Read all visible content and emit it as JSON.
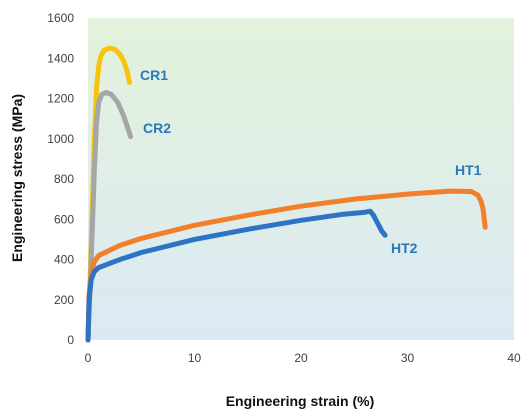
{
  "chart_data": {
    "type": "line",
    "title": "",
    "xlabel": "Engineering strain (%)",
    "ylabel": "Engineering stress (MPa)",
    "xlim": [
      0,
      40
    ],
    "ylim": [
      0,
      1600
    ],
    "xticks": [
      "0",
      "10",
      "20",
      "30",
      "40"
    ],
    "yticks": [
      "0",
      "200",
      "400",
      "600",
      "800",
      "1000",
      "1200",
      "1400",
      "1600"
    ],
    "grid": false,
    "background": "vertical gradient light green (top) to light blue (bottom)",
    "series": [
      {
        "name": "CR1",
        "color": "#f6c40e",
        "points": [
          [
            0,
            0
          ],
          [
            0.2,
            300
          ],
          [
            0.4,
            650
          ],
          [
            0.6,
            1000
          ],
          [
            0.8,
            1250
          ],
          [
            1.0,
            1360
          ],
          [
            1.2,
            1410
          ],
          [
            1.5,
            1440
          ],
          [
            2.0,
            1450
          ],
          [
            2.5,
            1445
          ],
          [
            3.0,
            1420
          ],
          [
            3.4,
            1380
          ],
          [
            3.7,
            1330
          ],
          [
            3.9,
            1280
          ]
        ]
      },
      {
        "name": "CR2",
        "color": "#a6a6a6",
        "points": [
          [
            0,
            0
          ],
          [
            0.2,
            250
          ],
          [
            0.4,
            550
          ],
          [
            0.6,
            850
          ],
          [
            0.8,
            1080
          ],
          [
            1.0,
            1180
          ],
          [
            1.3,
            1220
          ],
          [
            1.7,
            1230
          ],
          [
            2.2,
            1220
          ],
          [
            2.8,
            1180
          ],
          [
            3.3,
            1120
          ],
          [
            3.7,
            1060
          ],
          [
            4.0,
            1010
          ]
        ]
      },
      {
        "name": "HT1",
        "color": "#f27f2a",
        "points": [
          [
            0,
            0
          ],
          [
            0.1,
            230
          ],
          [
            0.3,
            330
          ],
          [
            0.6,
            390
          ],
          [
            1,
            420
          ],
          [
            3,
            470
          ],
          [
            5,
            505
          ],
          [
            10,
            570
          ],
          [
            15,
            620
          ],
          [
            20,
            665
          ],
          [
            25,
            700
          ],
          [
            30,
            725
          ],
          [
            34,
            740
          ],
          [
            36,
            738
          ],
          [
            36.6,
            720
          ],
          [
            36.9,
            690
          ],
          [
            37.1,
            650
          ],
          [
            37.3,
            560
          ]
        ]
      },
      {
        "name": "HT2",
        "color": "#2e74c4",
        "points": [
          [
            0,
            0
          ],
          [
            0.1,
            200
          ],
          [
            0.3,
            300
          ],
          [
            0.6,
            340
          ],
          [
            1,
            360
          ],
          [
            3,
            400
          ],
          [
            5,
            435
          ],
          [
            10,
            500
          ],
          [
            15,
            550
          ],
          [
            20,
            595
          ],
          [
            24,
            625
          ],
          [
            26,
            635
          ],
          [
            26.5,
            640
          ],
          [
            26.8,
            620
          ],
          [
            27.2,
            580
          ],
          [
            27.6,
            540
          ],
          [
            27.9,
            520
          ]
        ]
      }
    ]
  }
}
